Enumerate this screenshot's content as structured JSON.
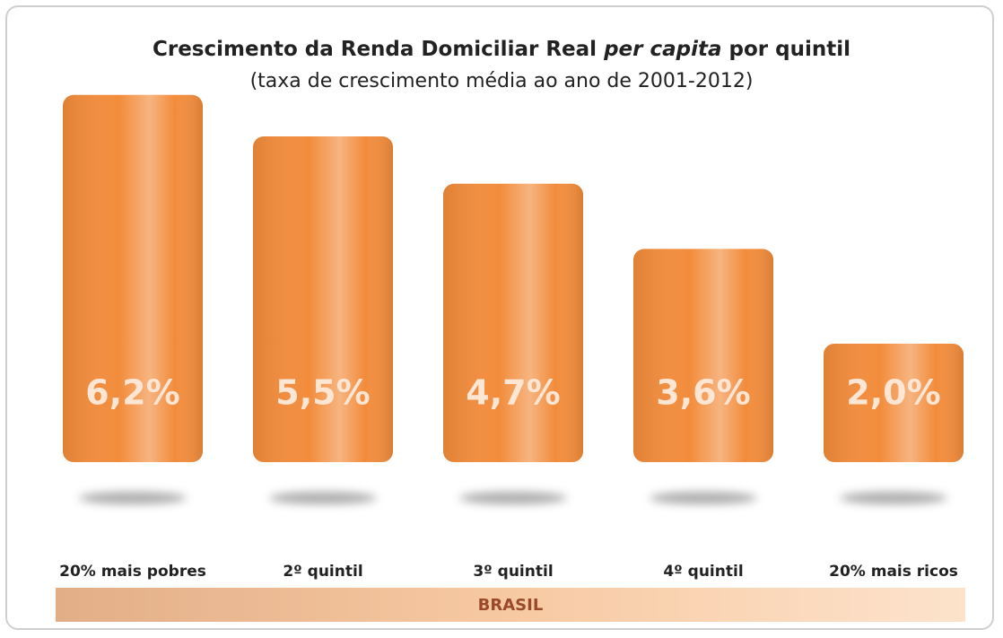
{
  "chart_data": {
    "type": "bar",
    "title": [
      "Crescimento da Renda Domiciliar Real",
      "per capita",
      "por quintil"
    ],
    "subtitle": "(taxa de crescimento média ao ano de 2001-2012)",
    "categories": [
      "20% mais pobres",
      "2º quintil",
      "3º quintil",
      "4º quintil",
      "20% mais ricos"
    ],
    "values": [
      6.2,
      5.5,
      4.7,
      3.6,
      2.0
    ],
    "value_labels": [
      "6,2%",
      "5,5%",
      "4,7%",
      "3,6%",
      "2,0%"
    ],
    "color": "#f28c3c",
    "group_label": "BRASIL"
  }
}
